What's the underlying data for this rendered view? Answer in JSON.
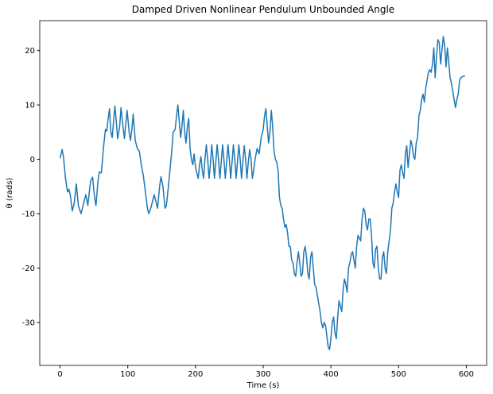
{
  "chart_data": {
    "type": "line",
    "title": "Damped Driven Nonlinear Pendulum Unbounded Angle",
    "xlabel": "Time (s)",
    "ylabel": "θ (rads)",
    "color": "#1f77b4",
    "xlim": [
      -30,
      630
    ],
    "ylim": [
      -37.9,
      25.5
    ],
    "xticks": [
      0,
      100,
      200,
      300,
      400,
      500,
      600
    ],
    "yticks": [
      -30,
      -20,
      -10,
      0,
      10,
      20
    ],
    "grid": false,
    "x": [
      0,
      3,
      5,
      8,
      11,
      13,
      15,
      18,
      21,
      24,
      27,
      31,
      35,
      38,
      41,
      45,
      48,
      51,
      53,
      56,
      58,
      61,
      64,
      67,
      69,
      71,
      73,
      75,
      77,
      79,
      81,
      83,
      85,
      88,
      90,
      93,
      95,
      97,
      99,
      102,
      104,
      106,
      108,
      111,
      114,
      117,
      120,
      123,
      126,
      129,
      131,
      134,
      137,
      139,
      142,
      144,
      147,
      149,
      152,
      155,
      157,
      160,
      163,
      165,
      167,
      170,
      172,
      174,
      176,
      178,
      180,
      182,
      184,
      186,
      188,
      190,
      192,
      194,
      196,
      198,
      200,
      202,
      204,
      206,
      208,
      210,
      212,
      214,
      216,
      218,
      220,
      222,
      224,
      226,
      228,
      230,
      232,
      234,
      236,
      238,
      240,
      242,
      244,
      246,
      248,
      250,
      252,
      254,
      256,
      258,
      260,
      262,
      264,
      266,
      268,
      270,
      272,
      274,
      276,
      278,
      280,
      282,
      284,
      286,
      288,
      291,
      294,
      297,
      300,
      302,
      304,
      306,
      308,
      310,
      312,
      314,
      316,
      318,
      320,
      322,
      324,
      326,
      328,
      330,
      332,
      334,
      336,
      338,
      340,
      342,
      344,
      346,
      348,
      350,
      352,
      354,
      356,
      358,
      360,
      362,
      364,
      366,
      368,
      370,
      372,
      374,
      376,
      378,
      380,
      382,
      384,
      386,
      388,
      390,
      392,
      394,
      396,
      398,
      400,
      402,
      404,
      406,
      408,
      410,
      412,
      414,
      416,
      418,
      420,
      422,
      424,
      426,
      428,
      430,
      432,
      434,
      436,
      438,
      440,
      442,
      444,
      446,
      448,
      450,
      452,
      454,
      456,
      458,
      460,
      462,
      464,
      466,
      468,
      470,
      472,
      474,
      476,
      478,
      480,
      482,
      484,
      486,
      488,
      490,
      492,
      494,
      496,
      498,
      500,
      502,
      504,
      506,
      508,
      510,
      512,
      514,
      516,
      518,
      520,
      522,
      524,
      526,
      528,
      530,
      532,
      534,
      536,
      538,
      540,
      542,
      544,
      546,
      548,
      550,
      552,
      554,
      556,
      558,
      560,
      562,
      564,
      566,
      568,
      570,
      572,
      574,
      576,
      578,
      580,
      582,
      584,
      586,
      588,
      590,
      592,
      594,
      596,
      598
    ],
    "values": [
      0.2,
      1.8,
      0.5,
      -3.5,
      -6,
      -5.5,
      -6.5,
      -9.5,
      -8,
      -4.5,
      -8.5,
      -10,
      -8,
      -6.5,
      -8.5,
      -4,
      -3.3,
      -7,
      -8.5,
      -4,
      -2.3,
      -2.5,
      2,
      5.5,
      5.2,
      7.5,
      9.3,
      5,
      4,
      7,
      9.8,
      7,
      3.8,
      6,
      9.5,
      6,
      3.8,
      6.5,
      9,
      5,
      3.5,
      5.5,
      8.3,
      3.5,
      2,
      1.5,
      -1,
      -3,
      -6,
      -9,
      -10,
      -9,
      -7.5,
      -6.5,
      -8,
      -9,
      -5,
      -3.2,
      -5,
      -9,
      -8.5,
      -5,
      -1,
      1.5,
      5,
      5.5,
      8,
      10,
      7,
      4,
      6,
      9,
      5,
      3,
      6,
      7.5,
      2,
      0,
      -1,
      1,
      -1.5,
      -2.5,
      -3.5,
      -1,
      0.5,
      -2,
      -3.5,
      0,
      2.7,
      0,
      -3.5,
      -1,
      2.7,
      0,
      -3.5,
      -0.5,
      2.7,
      0,
      -3.5,
      -0.5,
      2.7,
      0,
      -3.5,
      -0.5,
      2.7,
      0,
      -3.5,
      -0.5,
      2.7,
      0,
      -3.5,
      -0.5,
      2.7,
      0,
      -3.5,
      -0.5,
      2.5,
      0,
      -3.5,
      -0.5,
      1.8,
      0,
      -3.5,
      -2,
      0,
      2,
      1,
      4,
      5.5,
      8,
      9.3,
      6,
      3,
      5,
      9,
      6,
      1.5,
      0,
      -0.5,
      -2,
      -7,
      -8.5,
      -9,
      -11,
      -12.5,
      -12,
      -13.5,
      -16,
      -16,
      -18.5,
      -19,
      -21,
      -21.5,
      -19,
      -17,
      -19,
      -21.5,
      -21,
      -17,
      -16,
      -18,
      -21,
      -22,
      -18,
      -17,
      -20,
      -23,
      -23.5,
      -25,
      -26.5,
      -28,
      -30,
      -31,
      -30,
      -30.5,
      -32.5,
      -34.5,
      -35,
      -33,
      -30,
      -29,
      -32,
      -33,
      -29,
      -26,
      -27,
      -28,
      -24,
      -22,
      -23,
      -24.5,
      -20,
      -19,
      -17.5,
      -17,
      -18.5,
      -20,
      -16,
      -14,
      -14.5,
      -15,
      -11,
      -9,
      -9.5,
      -12,
      -13,
      -11,
      -11,
      -14,
      -19,
      -20,
      -16.5,
      -16,
      -20,
      -22,
      -22,
      -18,
      -17,
      -20,
      -21,
      -17,
      -15,
      -13,
      -9,
      -8,
      -6,
      -4.5,
      -6,
      -7,
      -2,
      -1,
      -2.5,
      -3.5,
      1,
      2.5,
      -1.5,
      1,
      3.5,
      2.5,
      0.5,
      0,
      3,
      4,
      8,
      9,
      11,
      12,
      10.5,
      13,
      14.5,
      16,
      16.5,
      16,
      17.5,
      20.5,
      15,
      19,
      22,
      21.5,
      17.5,
      20,
      22.6,
      21,
      17,
      20.5,
      18,
      15,
      14,
      12.5,
      11,
      9.5,
      11,
      12,
      14.5,
      15,
      15.2,
      15.3,
      15.3
    ]
  }
}
